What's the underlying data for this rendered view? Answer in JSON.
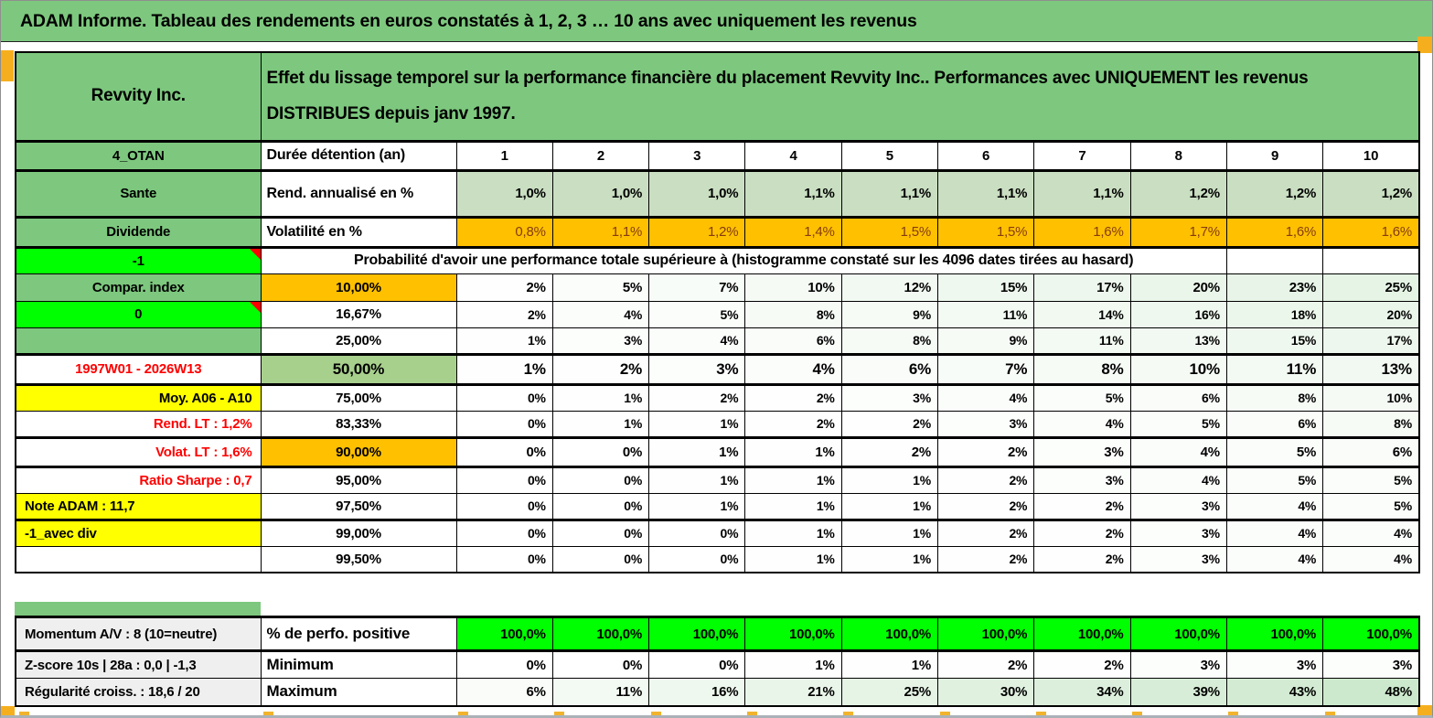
{
  "title_bar": {
    "text": "ADAM Informe. Tableau des rendements en euros constatés à 1, 2, 3 … 10 ans avec uniquement les revenus"
  },
  "header": {
    "instrument": "Revvity Inc.",
    "description_line1": "Effet du lissage temporel sur la performance financière du placement Revvity Inc.. Performances avec UNIQUEMENT les revenus",
    "description_line2": "DISTRIBUES depuis janv 1997."
  },
  "duration": {
    "label": "Durée détention (an)",
    "years": [
      "1",
      "2",
      "3",
      "4",
      "5",
      "6",
      "7",
      "8",
      "9",
      "10"
    ]
  },
  "left_panel": {
    "rows": [
      {
        "text": "4_OTAN",
        "bg": "band",
        "align": "center"
      },
      {
        "text": "Sante",
        "bg": "band",
        "align": "center"
      },
      {
        "text": "Dividende",
        "bg": "band",
        "align": "center"
      },
      {
        "text": "-1",
        "bg": "bright",
        "align": "center",
        "comment": true
      },
      {
        "text": "Compar. index",
        "bg": "band",
        "align": "center"
      },
      {
        "text": "0",
        "bg": "bright",
        "align": "center",
        "comment": true
      },
      {
        "text": "",
        "bg": "band",
        "align": "center"
      },
      {
        "text": "1997W01 - 2026W13",
        "bg": "white",
        "align": "center",
        "color": "red"
      },
      {
        "text": "Moy. A06 - A10",
        "bg": "yellow",
        "align": "right"
      },
      {
        "text": "Rend. LT :   1,2%",
        "bg": "white",
        "align": "right",
        "color": "red"
      },
      {
        "text": "Volat. LT :   1,6%",
        "bg": "white",
        "align": "right",
        "color": "red"
      },
      {
        "text": "Ratio Sharpe :   0,7",
        "bg": "white",
        "align": "right",
        "color": "red"
      },
      {
        "text": "Note ADAM : 11,7",
        "bg": "yellow",
        "align": "left"
      },
      {
        "text": "-1_avec div",
        "bg": "yellow",
        "align": "left"
      },
      {
        "text": "",
        "bg": "white",
        "align": "left"
      }
    ]
  },
  "matrix": {
    "annualized": {
      "label": "Rend. annualisé en %",
      "values": [
        "1,0%",
        "1,0%",
        "1,0%",
        "1,1%",
        "1,1%",
        "1,1%",
        "1,1%",
        "1,2%",
        "1,2%",
        "1,2%"
      ]
    },
    "volatility": {
      "label": "Volatilité en %",
      "values": [
        "0,8%",
        "1,1%",
        "1,2%",
        "1,4%",
        "1,5%",
        "1,5%",
        "1,6%",
        "1,7%",
        "1,6%",
        "1,6%"
      ]
    },
    "probability_note": "Probabilité d'avoir une performance totale supérieure à (histogramme constaté sur les 4096 dates tirées au hasard)",
    "probability_rows": [
      {
        "threshold": "10,00%",
        "label_bg": "orange",
        "bold": true,
        "values": [
          "2%",
          "5%",
          "7%",
          "10%",
          "12%",
          "15%",
          "17%",
          "20%",
          "23%",
          "25%"
        ]
      },
      {
        "threshold": "16,67%",
        "values": [
          "2%",
          "4%",
          "5%",
          "8%",
          "9%",
          "11%",
          "14%",
          "16%",
          "18%",
          "20%"
        ]
      },
      {
        "threshold": "25,00%",
        "values": [
          "1%",
          "3%",
          "4%",
          "6%",
          "8%",
          "9%",
          "11%",
          "13%",
          "15%",
          "17%"
        ]
      },
      {
        "threshold": "50,00%",
        "label_bg": "green",
        "bold": true,
        "big": true,
        "values": [
          "1%",
          "2%",
          "3%",
          "4%",
          "6%",
          "7%",
          "8%",
          "10%",
          "11%",
          "13%"
        ]
      },
      {
        "threshold": "75,00%",
        "values": [
          "0%",
          "1%",
          "2%",
          "2%",
          "3%",
          "4%",
          "5%",
          "6%",
          "8%",
          "10%"
        ]
      },
      {
        "threshold": "83,33%",
        "values": [
          "0%",
          "1%",
          "1%",
          "2%",
          "2%",
          "3%",
          "4%",
          "5%",
          "6%",
          "8%"
        ]
      },
      {
        "threshold": "90,00%",
        "label_bg": "orange",
        "bold": true,
        "values": [
          "0%",
          "0%",
          "1%",
          "1%",
          "2%",
          "2%",
          "3%",
          "4%",
          "5%",
          "6%"
        ]
      },
      {
        "threshold": "95,00%",
        "values": [
          "0%",
          "0%",
          "1%",
          "1%",
          "1%",
          "2%",
          "3%",
          "4%",
          "5%",
          "5%"
        ]
      },
      {
        "threshold": "97,50%",
        "values": [
          "0%",
          "0%",
          "1%",
          "1%",
          "1%",
          "2%",
          "2%",
          "3%",
          "4%",
          "5%"
        ]
      },
      {
        "threshold": "99,00%",
        "values": [
          "0%",
          "0%",
          "0%",
          "1%",
          "1%",
          "2%",
          "2%",
          "3%",
          "4%",
          "4%"
        ]
      },
      {
        "threshold": "99,50%",
        "values": [
          "0%",
          "0%",
          "0%",
          "1%",
          "1%",
          "2%",
          "2%",
          "3%",
          "4%",
          "4%"
        ]
      }
    ]
  },
  "bottom": {
    "left_labels": [
      "Momentum A/V : 8 (10=neutre)",
      "Z-score 10s | 28a : 0,0 | -1,3",
      "Régularité croiss. : 18,6 / 20"
    ],
    "rows": [
      {
        "label": "% de perfo. positive",
        "style": "positive",
        "values": [
          "100,0%",
          "100,0%",
          "100,0%",
          "100,0%",
          "100,0%",
          "100,0%",
          "100,0%",
          "100,0%",
          "100,0%",
          "100,0%"
        ]
      },
      {
        "label": "Minimum",
        "style": "minmax",
        "values": [
          "0%",
          "0%",
          "0%",
          "1%",
          "1%",
          "2%",
          "2%",
          "3%",
          "3%",
          "3%"
        ]
      },
      {
        "label": "Maximum",
        "style": "minmax",
        "values": [
          "6%",
          "11%",
          "16%",
          "21%",
          "25%",
          "30%",
          "34%",
          "39%",
          "43%",
          "48%"
        ]
      }
    ]
  },
  "colors": {
    "band_green": "#7DC87E",
    "light_green_row": "#CADFC2",
    "median_green": "#A8D08D",
    "orange": "#FFC000",
    "yellow": "#FFFF00",
    "bright_green": "#00FF00",
    "grey_cell": "#EFEFEF",
    "red_text": "#FF0000",
    "volatility_text": "#843C0C",
    "marker_orange": "#F5AF1E"
  }
}
